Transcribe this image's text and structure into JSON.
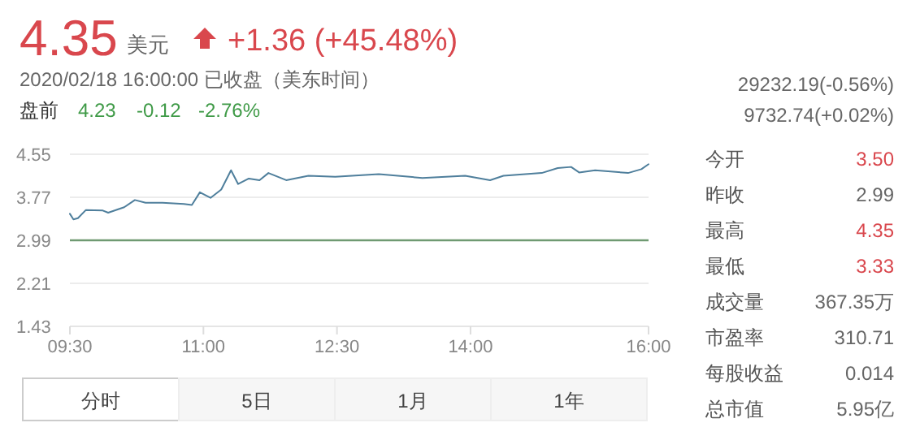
{
  "chart_data": {
    "type": "line",
    "title": "4.35",
    "annotations": [
      "美元",
      "+1.36 (+45.48%)",
      "2020/02/18 16:00:00  已收盘（美东时间）",
      "盘前",
      "4.23",
      "-0.12",
      "-2.76%",
      "29232.19(-0.56%)",
      "9732.74(+0.02%)",
      "今开",
      "3.50",
      "昨收",
      "2.99",
      "最高",
      "4.35",
      "最低",
      "3.33",
      "成交量",
      "367.35万",
      "市盈率",
      "310.71",
      "每股收益",
      "0.014",
      "总市值",
      "5.95亿",
      "分时",
      "5日",
      "1月",
      "1年"
    ],
    "series": [
      {
        "color": "#4f7f9c",
        "x": [
          9.5,
          9.54,
          9.59,
          9.68,
          9.87,
          9.93,
          10.11,
          10.23,
          10.35,
          10.54,
          10.78,
          10.87,
          10.96,
          11.08,
          11.2,
          11.31,
          11.39,
          11.51,
          11.63,
          11.73,
          11.93,
          12.18,
          12.48,
          12.97,
          13.46,
          13.94,
          14.22,
          14.37,
          14.8,
          14.98,
          15.13,
          15.22,
          15.4,
          15.77,
          15.92,
          16
        ],
        "values": [
          3.47,
          3.37,
          3.39,
          3.54,
          3.53,
          3.49,
          3.59,
          3.72,
          3.67,
          3.67,
          3.65,
          3.63,
          3.86,
          3.76,
          3.91,
          4.26,
          4.01,
          4.11,
          4.08,
          4.21,
          4.08,
          4.16,
          4.14,
          4.19,
          4.12,
          4.16,
          4.08,
          4.16,
          4.21,
          4.3,
          4.32,
          4.22,
          4.26,
          4.21,
          4.28,
          4.37
        ]
      }
    ],
    "xlim": [
      9.5,
      16
    ],
    "xticks": [
      {
        "value": 9.5,
        "label": "09:30"
      },
      {
        "value": 11,
        "label": "11:00"
      },
      {
        "value": 12.5,
        "label": "12:30"
      },
      {
        "value": 14,
        "label": "14:00"
      },
      {
        "value": 16,
        "label": "16:00"
      }
    ],
    "ylim": [
      1.43,
      4.55
    ],
    "yticks": [
      1.43,
      2.21,
      2.99,
      3.77,
      4.55
    ],
    "grid": "y",
    "ref_lines": [
      {
        "axis": "y",
        "value": 2.99,
        "color": "#6f9a72"
      }
    ]
  }
}
